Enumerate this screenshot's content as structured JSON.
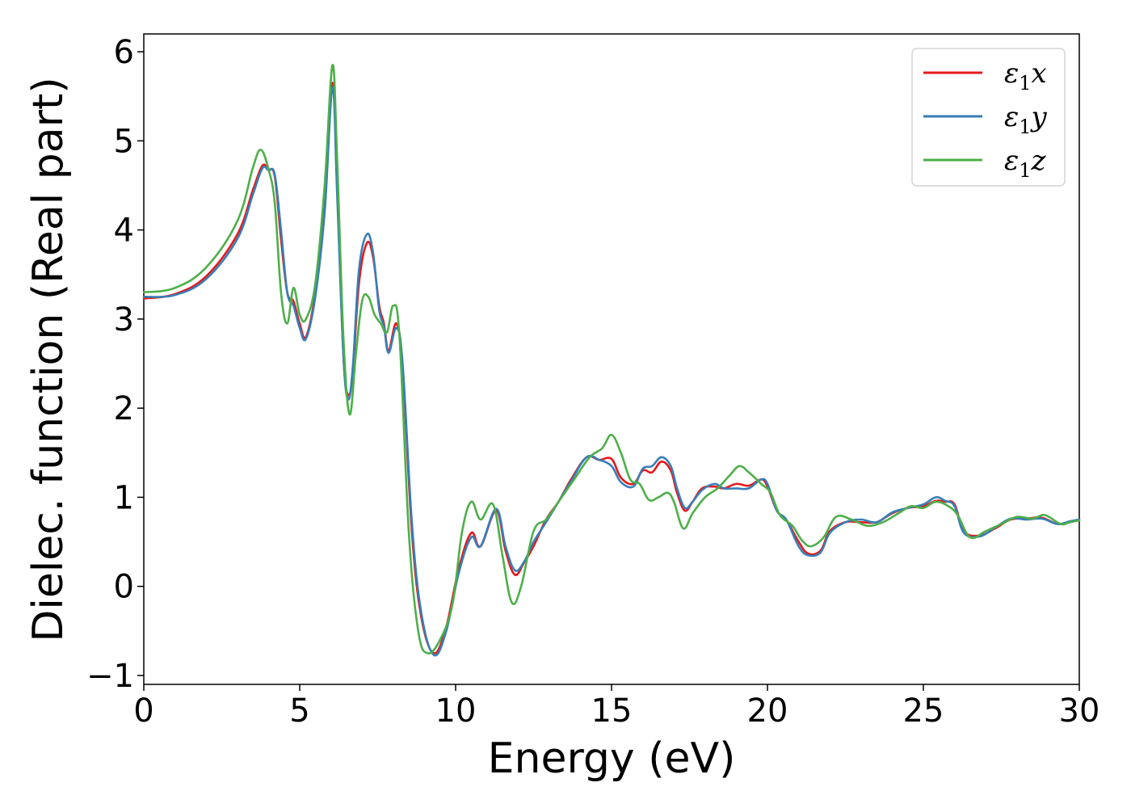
{
  "chart_data": {
    "type": "line",
    "title": "",
    "xlabel": "Energy (eV)",
    "ylabel": "Dielec. function (Real part)",
    "xlim": [
      0,
      30
    ],
    "ylim": [
      -1.1,
      6.2
    ],
    "xticks": [
      0,
      5,
      10,
      15,
      20,
      25,
      30
    ],
    "xtick_labels": [
      "0",
      "5",
      "10",
      "15",
      "20",
      "25",
      "30"
    ],
    "yticks": [
      -1,
      0,
      1,
      2,
      3,
      4,
      5,
      6
    ],
    "ytick_labels": [
      "−1",
      "0",
      "1",
      "2",
      "3",
      "4",
      "5",
      "6"
    ],
    "grid": false,
    "legend_position": "top-right",
    "series": [
      {
        "name": "ε₁x",
        "legend_main": "ε",
        "legend_sub": "1",
        "legend_var": "x",
        "color": "#e41a1c",
        "points": [
          [
            0,
            3.23
          ],
          [
            1,
            3.28
          ],
          [
            2,
            3.48
          ],
          [
            3,
            3.95
          ],
          [
            3.5,
            4.45
          ],
          [
            3.8,
            4.72
          ],
          [
            4.0,
            4.68
          ],
          [
            4.2,
            4.6
          ],
          [
            4.4,
            3.9
          ],
          [
            4.6,
            3.3
          ],
          [
            4.8,
            3.2
          ],
          [
            5.0,
            2.95
          ],
          [
            5.2,
            2.8
          ],
          [
            5.5,
            3.3
          ],
          [
            5.8,
            4.3
          ],
          [
            6.05,
            5.65
          ],
          [
            6.2,
            4.5
          ],
          [
            6.4,
            2.6
          ],
          [
            6.55,
            2.15
          ],
          [
            6.7,
            2.4
          ],
          [
            6.9,
            3.4
          ],
          [
            7.15,
            3.85
          ],
          [
            7.35,
            3.7
          ],
          [
            7.55,
            3.15
          ],
          [
            7.7,
            2.95
          ],
          [
            7.85,
            2.65
          ],
          [
            8.1,
            2.95
          ],
          [
            8.3,
            2.45
          ],
          [
            8.6,
            0.6
          ],
          [
            8.9,
            -0.35
          ],
          [
            9.3,
            -0.75
          ],
          [
            9.7,
            -0.45
          ],
          [
            10.1,
            0.2
          ],
          [
            10.5,
            0.6
          ],
          [
            10.8,
            0.45
          ],
          [
            11.3,
            0.85
          ],
          [
            11.6,
            0.4
          ],
          [
            11.9,
            0.13
          ],
          [
            12.2,
            0.27
          ],
          [
            12.5,
            0.45
          ],
          [
            12.9,
            0.75
          ],
          [
            13.3,
            0.95
          ],
          [
            13.7,
            1.2
          ],
          [
            14.2,
            1.45
          ],
          [
            14.6,
            1.42
          ],
          [
            15.0,
            1.43
          ],
          [
            15.3,
            1.22
          ],
          [
            15.7,
            1.15
          ],
          [
            16.0,
            1.3
          ],
          [
            16.3,
            1.28
          ],
          [
            16.6,
            1.4
          ],
          [
            16.9,
            1.3
          ],
          [
            17.1,
            1.05
          ],
          [
            17.35,
            0.85
          ],
          [
            17.6,
            0.95
          ],
          [
            17.9,
            1.1
          ],
          [
            18.3,
            1.12
          ],
          [
            18.6,
            1.1
          ],
          [
            19.0,
            1.15
          ],
          [
            19.4,
            1.13
          ],
          [
            19.8,
            1.2
          ],
          [
            20.0,
            1.12
          ],
          [
            20.3,
            0.85
          ],
          [
            20.6,
            0.75
          ],
          [
            21.0,
            0.5
          ],
          [
            21.3,
            0.37
          ],
          [
            21.7,
            0.4
          ],
          [
            22.0,
            0.62
          ],
          [
            22.5,
            0.72
          ],
          [
            23.0,
            0.72
          ],
          [
            23.5,
            0.72
          ],
          [
            24.0,
            0.82
          ],
          [
            24.5,
            0.88
          ],
          [
            25.0,
            0.9
          ],
          [
            25.4,
            0.96
          ],
          [
            25.7,
            0.95
          ],
          [
            26.0,
            0.92
          ],
          [
            26.3,
            0.62
          ],
          [
            26.8,
            0.57
          ],
          [
            27.3,
            0.65
          ],
          [
            27.8,
            0.75
          ],
          [
            28.3,
            0.76
          ],
          [
            28.8,
            0.77
          ],
          [
            29.3,
            0.7
          ],
          [
            29.7,
            0.72
          ],
          [
            30.0,
            0.75
          ]
        ]
      },
      {
        "name": "ε₁y",
        "legend_main": "ε",
        "legend_sub": "1",
        "legend_var": "y",
        "color": "#377eb8",
        "points": [
          [
            0,
            3.25
          ],
          [
            1,
            3.27
          ],
          [
            2,
            3.45
          ],
          [
            3,
            3.9
          ],
          [
            3.5,
            4.4
          ],
          [
            3.8,
            4.69
          ],
          [
            4.0,
            4.67
          ],
          [
            4.2,
            4.62
          ],
          [
            4.4,
            4.0
          ],
          [
            4.6,
            3.3
          ],
          [
            4.8,
            3.15
          ],
          [
            5.0,
            2.9
          ],
          [
            5.2,
            2.78
          ],
          [
            5.5,
            3.25
          ],
          [
            5.8,
            4.2
          ],
          [
            6.05,
            5.6
          ],
          [
            6.2,
            4.4
          ],
          [
            6.4,
            2.6
          ],
          [
            6.55,
            2.1
          ],
          [
            6.7,
            2.45
          ],
          [
            6.9,
            3.55
          ],
          [
            7.15,
            3.95
          ],
          [
            7.35,
            3.75
          ],
          [
            7.55,
            3.1
          ],
          [
            7.7,
            2.92
          ],
          [
            7.85,
            2.62
          ],
          [
            8.1,
            2.9
          ],
          [
            8.3,
            2.5
          ],
          [
            8.6,
            0.7
          ],
          [
            8.9,
            -0.3
          ],
          [
            9.3,
            -0.77
          ],
          [
            9.7,
            -0.5
          ],
          [
            10.1,
            0.15
          ],
          [
            10.5,
            0.55
          ],
          [
            10.8,
            0.45
          ],
          [
            11.3,
            0.87
          ],
          [
            11.6,
            0.45
          ],
          [
            11.9,
            0.18
          ],
          [
            12.2,
            0.28
          ],
          [
            12.5,
            0.5
          ],
          [
            12.9,
            0.72
          ],
          [
            13.3,
            0.95
          ],
          [
            13.7,
            1.18
          ],
          [
            14.2,
            1.45
          ],
          [
            14.6,
            1.42
          ],
          [
            15.0,
            1.35
          ],
          [
            15.3,
            1.17
          ],
          [
            15.7,
            1.12
          ],
          [
            16.0,
            1.32
          ],
          [
            16.3,
            1.35
          ],
          [
            16.6,
            1.45
          ],
          [
            16.9,
            1.35
          ],
          [
            17.1,
            1.1
          ],
          [
            17.35,
            0.88
          ],
          [
            17.6,
            0.95
          ],
          [
            17.9,
            1.08
          ],
          [
            18.3,
            1.15
          ],
          [
            18.6,
            1.1
          ],
          [
            19.0,
            1.1
          ],
          [
            19.4,
            1.1
          ],
          [
            19.8,
            1.2
          ],
          [
            20.0,
            1.15
          ],
          [
            20.3,
            0.85
          ],
          [
            20.6,
            0.75
          ],
          [
            21.0,
            0.45
          ],
          [
            21.3,
            0.35
          ],
          [
            21.7,
            0.38
          ],
          [
            22.0,
            0.6
          ],
          [
            22.5,
            0.72
          ],
          [
            23.0,
            0.75
          ],
          [
            23.5,
            0.72
          ],
          [
            24.0,
            0.83
          ],
          [
            24.5,
            0.88
          ],
          [
            25.0,
            0.92
          ],
          [
            25.4,
            1.0
          ],
          [
            25.7,
            0.96
          ],
          [
            26.0,
            0.9
          ],
          [
            26.3,
            0.6
          ],
          [
            26.8,
            0.56
          ],
          [
            27.3,
            0.66
          ],
          [
            27.8,
            0.76
          ],
          [
            28.3,
            0.75
          ],
          [
            28.8,
            0.76
          ],
          [
            29.3,
            0.7
          ],
          [
            29.7,
            0.73
          ],
          [
            30.0,
            0.75
          ]
        ]
      },
      {
        "name": "ε₁z",
        "legend_main": "ε",
        "legend_sub": "1",
        "legend_var": "z",
        "color": "#4daf4a",
        "points": [
          [
            0,
            3.3
          ],
          [
            1,
            3.35
          ],
          [
            2,
            3.58
          ],
          [
            3,
            4.1
          ],
          [
            3.5,
            4.7
          ],
          [
            3.75,
            4.9
          ],
          [
            4.0,
            4.68
          ],
          [
            4.2,
            4.3
          ],
          [
            4.4,
            3.3
          ],
          [
            4.6,
            2.95
          ],
          [
            4.8,
            3.35
          ],
          [
            5.0,
            3.05
          ],
          [
            5.2,
            3.0
          ],
          [
            5.5,
            3.4
          ],
          [
            5.8,
            4.5
          ],
          [
            6.05,
            5.85
          ],
          [
            6.2,
            4.8
          ],
          [
            6.4,
            2.8
          ],
          [
            6.6,
            1.93
          ],
          [
            6.8,
            2.6
          ],
          [
            7.0,
            3.2
          ],
          [
            7.2,
            3.25
          ],
          [
            7.4,
            3.05
          ],
          [
            7.6,
            2.95
          ],
          [
            7.8,
            2.85
          ],
          [
            8.0,
            3.15
          ],
          [
            8.2,
            2.8
          ],
          [
            8.5,
            0.6
          ],
          [
            8.8,
            -0.5
          ],
          [
            9.1,
            -0.75
          ],
          [
            9.5,
            -0.6
          ],
          [
            9.9,
            -0.2
          ],
          [
            10.2,
            0.6
          ],
          [
            10.5,
            0.95
          ],
          [
            10.8,
            0.75
          ],
          [
            11.2,
            0.92
          ],
          [
            11.5,
            0.35
          ],
          [
            11.8,
            -0.18
          ],
          [
            12.1,
            0.0
          ],
          [
            12.5,
            0.62
          ],
          [
            12.9,
            0.75
          ],
          [
            13.3,
            0.95
          ],
          [
            13.8,
            1.2
          ],
          [
            14.3,
            1.45
          ],
          [
            14.7,
            1.55
          ],
          [
            15.0,
            1.7
          ],
          [
            15.3,
            1.5
          ],
          [
            15.6,
            1.2
          ],
          [
            15.9,
            1.15
          ],
          [
            16.2,
            0.97
          ],
          [
            16.5,
            1.0
          ],
          [
            16.8,
            1.05
          ],
          [
            17.0,
            0.95
          ],
          [
            17.3,
            0.65
          ],
          [
            17.6,
            0.82
          ],
          [
            18.0,
            1.0
          ],
          [
            18.4,
            1.1
          ],
          [
            18.8,
            1.25
          ],
          [
            19.1,
            1.35
          ],
          [
            19.4,
            1.28
          ],
          [
            19.8,
            1.15
          ],
          [
            20.1,
            1.05
          ],
          [
            20.4,
            0.8
          ],
          [
            20.8,
            0.68
          ],
          [
            21.1,
            0.52
          ],
          [
            21.4,
            0.45
          ],
          [
            21.8,
            0.55
          ],
          [
            22.2,
            0.78
          ],
          [
            22.7,
            0.75
          ],
          [
            23.2,
            0.68
          ],
          [
            23.7,
            0.72
          ],
          [
            24.2,
            0.82
          ],
          [
            24.6,
            0.9
          ],
          [
            25.0,
            0.88
          ],
          [
            25.4,
            0.95
          ],
          [
            25.8,
            0.9
          ],
          [
            26.1,
            0.8
          ],
          [
            26.5,
            0.55
          ],
          [
            27.0,
            0.62
          ],
          [
            27.5,
            0.7
          ],
          [
            28.0,
            0.78
          ],
          [
            28.5,
            0.76
          ],
          [
            28.9,
            0.8
          ],
          [
            29.4,
            0.7
          ],
          [
            29.7,
            0.72
          ],
          [
            30.0,
            0.74
          ]
        ]
      }
    ]
  }
}
